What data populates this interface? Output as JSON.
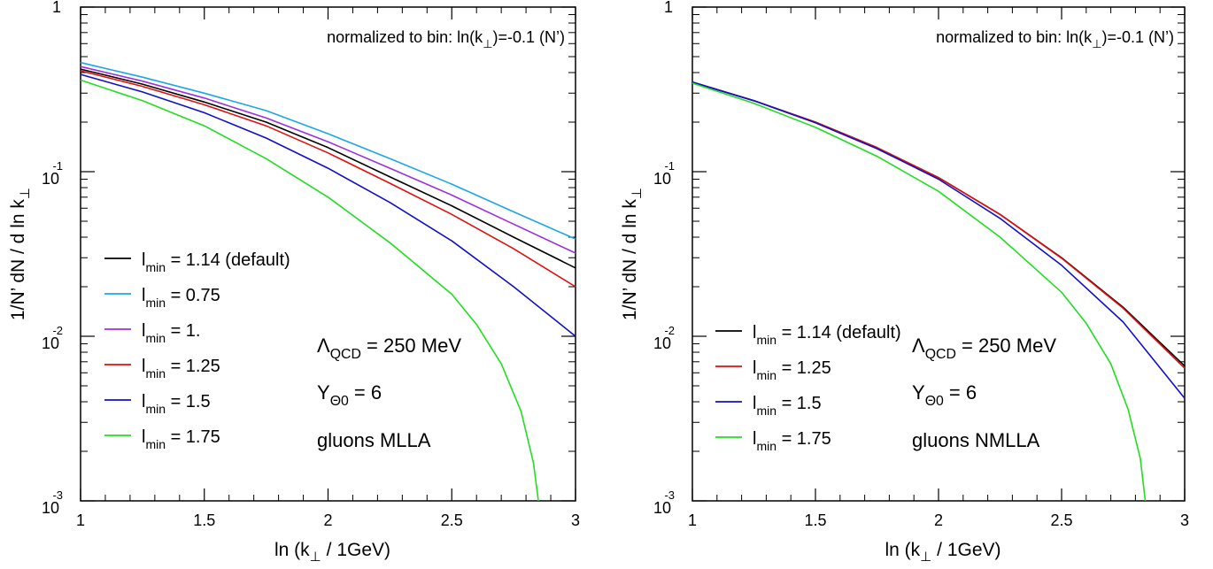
{
  "chart_data": [
    {
      "type": "line",
      "scale": "log-y",
      "xlim": [
        1,
        3
      ],
      "ylim": [
        0.001,
        1
      ],
      "x_ticks": [
        "1",
        "1.5",
        "2",
        "2.5",
        "3"
      ],
      "xlabel": {
        "pre": "ln (k",
        "sub": "⊥",
        "post": " / 1GeV)"
      },
      "ylabel": {
        "pre": "1/N’  dN / d ln k",
        "sub": "⊥"
      },
      "note": {
        "pre": "normalized to bin: ln(k",
        "sub": "⊥",
        "post": ")=-0.1 (N’)"
      },
      "annotations": {
        "lambda": {
          "sym": "Λ",
          "sub": "QCD",
          "rest": " = 250 MeV"
        },
        "y": {
          "sym": "Y",
          "sub": "Θ0",
          "rest": " = 6"
        },
        "label": "gluons MLLA"
      },
      "legend_position": "middle-left",
      "series": [
        {
          "name": "l_min = 1.14 (default)",
          "legend": {
            "pre": "l",
            "sub": "min",
            "post": " = 1.14 (default)"
          },
          "color": "#000000",
          "x": [
            1,
            1.25,
            1.5,
            1.75,
            2,
            2.25,
            2.5,
            2.75,
            3
          ],
          "y": [
            0.42,
            0.34,
            0.265,
            0.2,
            0.14,
            0.093,
            0.062,
            0.04,
            0.026
          ]
        },
        {
          "name": "l_min = 0.75",
          "legend": {
            "pre": "l",
            "sub": "min",
            "post": " = 0.75"
          },
          "color": "#1ba7e6",
          "x": [
            1,
            1.25,
            1.5,
            1.75,
            2,
            2.25,
            2.5,
            2.75,
            3
          ],
          "y": [
            0.46,
            0.375,
            0.3,
            0.235,
            0.17,
            0.12,
            0.084,
            0.057,
            0.039
          ]
        },
        {
          "name": "l_min = 1.",
          "legend": {
            "pre": "l",
            "sub": "min",
            "post": " = 1."
          },
          "color": "#9b30e0",
          "x": [
            1,
            1.25,
            1.5,
            1.75,
            2,
            2.25,
            2.5,
            2.75,
            3
          ],
          "y": [
            0.435,
            0.355,
            0.28,
            0.212,
            0.152,
            0.105,
            0.072,
            0.048,
            0.032
          ]
        },
        {
          "name": "l_min = 1.25",
          "legend": {
            "pre": "l",
            "sub": "min",
            "post": " = 1.25"
          },
          "color": "#e01010",
          "x": [
            1,
            1.25,
            1.5,
            1.75,
            2,
            2.25,
            2.5,
            2.75,
            3
          ],
          "y": [
            0.41,
            0.33,
            0.255,
            0.19,
            0.13,
            0.085,
            0.055,
            0.034,
            0.02
          ]
        },
        {
          "name": "l_min = 1.5",
          "legend": {
            "pre": "l",
            "sub": "min",
            "post": " = 1.5"
          },
          "color": "#1010c8",
          "x": [
            1,
            1.25,
            1.5,
            1.75,
            2,
            2.25,
            2.5,
            2.75,
            3
          ],
          "y": [
            0.39,
            0.305,
            0.228,
            0.16,
            0.105,
            0.065,
            0.038,
            0.02,
            0.01
          ]
        },
        {
          "name": "l_min = 1.75",
          "legend": {
            "pre": "l",
            "sub": "min",
            "post": " = 1.75"
          },
          "color": "#22dd22",
          "x": [
            1,
            1.25,
            1.5,
            1.75,
            2,
            2.25,
            2.5,
            2.6,
            2.7,
            2.78,
            2.83,
            2.85
          ],
          "y": [
            0.36,
            0.27,
            0.19,
            0.12,
            0.07,
            0.037,
            0.018,
            0.0118,
            0.0068,
            0.0035,
            0.0017,
            0.001
          ]
        }
      ]
    },
    {
      "type": "line",
      "scale": "log-y",
      "xlim": [
        1,
        3
      ],
      "ylim": [
        0.001,
        1
      ],
      "x_ticks": [
        "1",
        "1.5",
        "2",
        "2.5",
        "3"
      ],
      "xlabel": {
        "pre": "ln (k",
        "sub": "⊥",
        "post": " / 1GeV)"
      },
      "ylabel": {
        "pre": "1/N’  dN / d ln k",
        "sub": "⊥"
      },
      "note": {
        "pre": "normalized to bin: ln(k",
        "sub": "⊥",
        "post": ")=-0.1 (N’)"
      },
      "annotations": {
        "lambda": {
          "sym": "Λ",
          "sub": "QCD",
          "rest": " = 250 MeV"
        },
        "y": {
          "sym": "Y",
          "sub": "Θ0",
          "rest": " = 6"
        },
        "label": "gluons NMLLA"
      },
      "legend_position": "lower-left",
      "series": [
        {
          "name": "l_min = 1.14 (default)",
          "legend": {
            "pre": "l",
            "sub": "min",
            "post": " = 1.14 (default)"
          },
          "color": "#000000",
          "x": [
            1,
            1.25,
            1.5,
            1.75,
            2,
            2.25,
            2.5,
            2.75,
            3
          ],
          "y": [
            0.35,
            0.27,
            0.2,
            0.14,
            0.092,
            0.055,
            0.03,
            0.015,
            0.0066
          ]
        },
        {
          "name": "l_min = 1.25",
          "legend": {
            "pre": "l",
            "sub": "min",
            "post": " = 1.25"
          },
          "color": "#e01010",
          "x": [
            1,
            1.25,
            1.5,
            1.75,
            2,
            2.25,
            2.5,
            2.75,
            3
          ],
          "y": [
            0.35,
            0.27,
            0.2,
            0.14,
            0.092,
            0.055,
            0.0298,
            0.0148,
            0.0064
          ]
        },
        {
          "name": "l_min = 1.5",
          "legend": {
            "pre": "l",
            "sub": "min",
            "post": " = 1.5"
          },
          "color": "#1010c8",
          "x": [
            1,
            1.25,
            1.5,
            1.75,
            2,
            2.25,
            2.5,
            2.75,
            3
          ],
          "y": [
            0.35,
            0.27,
            0.198,
            0.138,
            0.09,
            0.052,
            0.027,
            0.0122,
            0.0042
          ]
        },
        {
          "name": "l_min = 1.75",
          "legend": {
            "pre": "l",
            "sub": "min",
            "post": " = 1.75"
          },
          "color": "#22dd22",
          "x": [
            1,
            1.25,
            1.5,
            1.75,
            2,
            2.25,
            2.5,
            2.6,
            2.7,
            2.77,
            2.82,
            2.84
          ],
          "y": [
            0.345,
            0.26,
            0.186,
            0.124,
            0.076,
            0.04,
            0.0185,
            0.012,
            0.0068,
            0.0036,
            0.0018,
            0.001
          ]
        }
      ]
    }
  ]
}
